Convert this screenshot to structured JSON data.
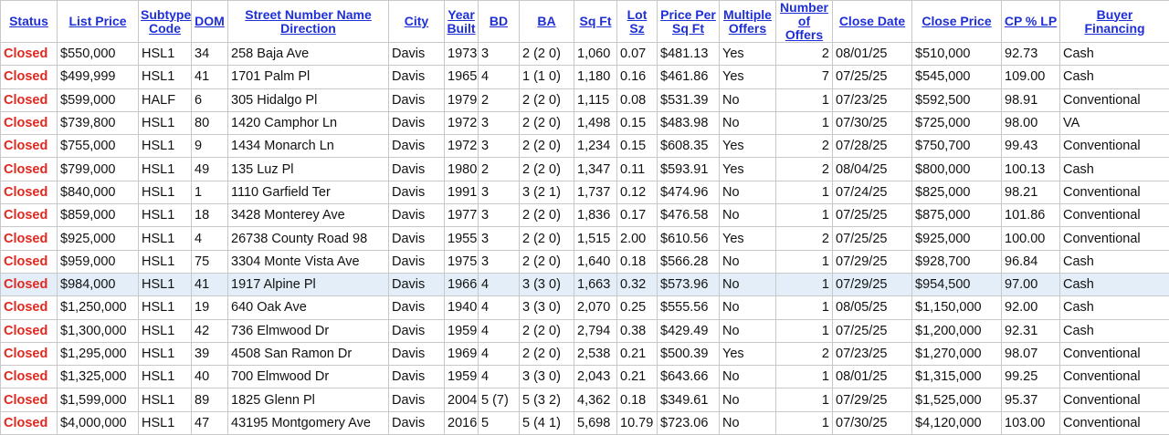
{
  "headers": [
    {
      "key": "status",
      "l1": "Status",
      "l2": ""
    },
    {
      "key": "list_price",
      "l1": "List Price",
      "l2": ""
    },
    {
      "key": "subtype",
      "l1": "Subtype",
      "l2": "Code"
    },
    {
      "key": "dom",
      "l1": "DOM",
      "l2": ""
    },
    {
      "key": "street",
      "l1": "Street Number Name",
      "l2": "Direction"
    },
    {
      "key": "city",
      "l1": "City",
      "l2": ""
    },
    {
      "key": "year",
      "l1": "Year",
      "l2": "Built"
    },
    {
      "key": "bd",
      "l1": "BD",
      "l2": ""
    },
    {
      "key": "ba",
      "l1": "BA",
      "l2": ""
    },
    {
      "key": "sqft",
      "l1": "Sq Ft",
      "l2": ""
    },
    {
      "key": "lot",
      "l1": "Lot Sz",
      "l2": ""
    },
    {
      "key": "ppsf",
      "l1": "Price Per",
      "l2": "Sq Ft"
    },
    {
      "key": "multi",
      "l1": "Multiple",
      "l2": "Offers"
    },
    {
      "key": "num_offers",
      "l1": "Number",
      "l2": "of Offers"
    },
    {
      "key": "close_date",
      "l1": "Close Date",
      "l2": ""
    },
    {
      "key": "close_price",
      "l1": "Close Price",
      "l2": ""
    },
    {
      "key": "cp_lp",
      "l1": "CP % LP",
      "l2": ""
    },
    {
      "key": "financing",
      "l1": "Buyer",
      "l2": "Financing"
    }
  ],
  "selected_row": 10,
  "rows": [
    [
      "Closed",
      "$550,000",
      "HSL1",
      "34",
      "258 Baja Ave",
      "Davis",
      "1973",
      "3",
      "2 (2 0)",
      "1,060",
      "0.07",
      "$481.13",
      "Yes",
      "2",
      "08/01/25",
      "$510,000",
      "92.73",
      "Cash"
    ],
    [
      "Closed",
      "$499,999",
      "HSL1",
      "41",
      "1701 Palm Pl",
      "Davis",
      "1965",
      "4",
      "1 (1 0)",
      "1,180",
      "0.16",
      "$461.86",
      "Yes",
      "7",
      "07/25/25",
      "$545,000",
      "109.00",
      "Cash"
    ],
    [
      "Closed",
      "$599,000",
      "HALF",
      "6",
      "305 Hidalgo Pl",
      "Davis",
      "1979",
      "2",
      "2 (2 0)",
      "1,115",
      "0.08",
      "$531.39",
      "No",
      "1",
      "07/23/25",
      "$592,500",
      "98.91",
      "Conventional"
    ],
    [
      "Closed",
      "$739,800",
      "HSL1",
      "80",
      "1420 Camphor Ln",
      "Davis",
      "1972",
      "3",
      "2 (2 0)",
      "1,498",
      "0.15",
      "$483.98",
      "No",
      "1",
      "07/30/25",
      "$725,000",
      "98.00",
      "VA"
    ],
    [
      "Closed",
      "$755,000",
      "HSL1",
      "9",
      "1434 Monarch Ln",
      "Davis",
      "1972",
      "3",
      "2 (2 0)",
      "1,234",
      "0.15",
      "$608.35",
      "Yes",
      "2",
      "07/28/25",
      "$750,700",
      "99.43",
      "Conventional"
    ],
    [
      "Closed",
      "$799,000",
      "HSL1",
      "49",
      "135 Luz Pl",
      "Davis",
      "1980",
      "2",
      "2 (2 0)",
      "1,347",
      "0.11",
      "$593.91",
      "Yes",
      "2",
      "08/04/25",
      "$800,000",
      "100.13",
      "Cash"
    ],
    [
      "Closed",
      "$840,000",
      "HSL1",
      "1",
      "1110 Garfield Ter",
      "Davis",
      "1991",
      "3",
      "3 (2 1)",
      "1,737",
      "0.12",
      "$474.96",
      "No",
      "1",
      "07/24/25",
      "$825,000",
      "98.21",
      "Conventional"
    ],
    [
      "Closed",
      "$859,000",
      "HSL1",
      "18",
      "3428 Monterey Ave",
      "Davis",
      "1977",
      "3",
      "2 (2 0)",
      "1,836",
      "0.17",
      "$476.58",
      "No",
      "1",
      "07/25/25",
      "$875,000",
      "101.86",
      "Conventional"
    ],
    [
      "Closed",
      "$925,000",
      "HSL1",
      "4",
      "26738 County Road 98",
      "Davis",
      "1955",
      "3",
      "2 (2 0)",
      "1,515",
      "2.00",
      "$610.56",
      "Yes",
      "2",
      "07/25/25",
      "$925,000",
      "100.00",
      "Conventional"
    ],
    [
      "Closed",
      "$959,000",
      "HSL1",
      "75",
      "3304 Monte Vista Ave",
      "Davis",
      "1975",
      "3",
      "2 (2 0)",
      "1,640",
      "0.18",
      "$566.28",
      "No",
      "1",
      "07/29/25",
      "$928,700",
      "96.84",
      "Cash"
    ],
    [
      "Closed",
      "$984,000",
      "HSL1",
      "41",
      "1917 Alpine Pl",
      "Davis",
      "1966",
      "4",
      "3 (3 0)",
      "1,663",
      "0.32",
      "$573.96",
      "No",
      "1",
      "07/29/25",
      "$954,500",
      "97.00",
      "Cash"
    ],
    [
      "Closed",
      "$1,250,000",
      "HSL1",
      "19",
      "640 Oak Ave",
      "Davis",
      "1940",
      "4",
      "3 (3 0)",
      "2,070",
      "0.25",
      "$555.56",
      "No",
      "1",
      "08/05/25",
      "$1,150,000",
      "92.00",
      "Cash"
    ],
    [
      "Closed",
      "$1,300,000",
      "HSL1",
      "42",
      "736 Elmwood Dr",
      "Davis",
      "1959",
      "4",
      "2 (2 0)",
      "2,794",
      "0.38",
      "$429.49",
      "No",
      "1",
      "07/25/25",
      "$1,200,000",
      "92.31",
      "Cash"
    ],
    [
      "Closed",
      "$1,295,000",
      "HSL1",
      "39",
      "4508 San Ramon Dr",
      "Davis",
      "1969",
      "4",
      "2 (2 0)",
      "2,538",
      "0.21",
      "$500.39",
      "Yes",
      "2",
      "07/23/25",
      "$1,270,000",
      "98.07",
      "Conventional"
    ],
    [
      "Closed",
      "$1,325,000",
      "HSL1",
      "40",
      "700 Elmwood Dr",
      "Davis",
      "1959",
      "4",
      "3 (3 0)",
      "2,043",
      "0.21",
      "$643.66",
      "No",
      "1",
      "08/01/25",
      "$1,315,000",
      "99.25",
      "Conventional"
    ],
    [
      "Closed",
      "$1,599,000",
      "HSL1",
      "89",
      "1825 Glenn Pl",
      "Davis",
      "2004",
      "5 (7)",
      "5 (3 2)",
      "4,362",
      "0.18",
      "$349.61",
      "No",
      "1",
      "07/29/25",
      "$1,525,000",
      "95.37",
      "Conventional"
    ],
    [
      "Closed",
      "$4,000,000",
      "HSL1",
      "47",
      "43195 Montgomery Ave",
      "Davis",
      "2016",
      "5",
      "5 (4 1)",
      "5,698",
      "10.79",
      "$723.06",
      "No",
      "1",
      "07/30/25",
      "$4,120,000",
      "103.00",
      "Conventional"
    ]
  ]
}
